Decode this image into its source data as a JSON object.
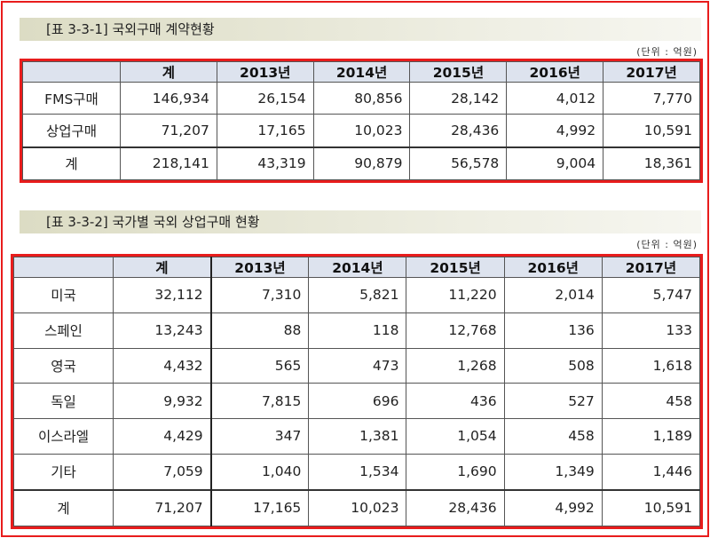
{
  "table1": {
    "title": "[표 3-3-1] 국외구매 계약현황",
    "unit": "(단위 : 억원)",
    "headers": [
      "",
      "계",
      "2013년",
      "2014년",
      "2015년",
      "2016년",
      "2017년"
    ],
    "rows": [
      {
        "label": "FMS구매",
        "values": [
          "146,934",
          "26,154",
          "80,856",
          "28,142",
          "4,012",
          "7,770"
        ]
      },
      {
        "label": "상업구매",
        "values": [
          "71,207",
          "17,165",
          "10,023",
          "28,436",
          "4,992",
          "10,591"
        ]
      },
      {
        "label": "계",
        "values": [
          "218,141",
          "43,319",
          "90,879",
          "56,578",
          "9,004",
          "18,361"
        ]
      }
    ]
  },
  "table2": {
    "title": "[표 3-3-2] 국가별 국외 상업구매 현황",
    "unit": "(단위 : 억원)",
    "headers": [
      "",
      "계",
      "2013년",
      "2014년",
      "2015년",
      "2016년",
      "2017년"
    ],
    "rows": [
      {
        "label": "미국",
        "values": [
          "32,112",
          "7,310",
          "5,821",
          "11,220",
          "2,014",
          "5,747"
        ]
      },
      {
        "label": "스페인",
        "values": [
          "13,243",
          "88",
          "118",
          "12,768",
          "136",
          "133"
        ]
      },
      {
        "label": "영국",
        "values": [
          "4,432",
          "565",
          "473",
          "1,268",
          "508",
          "1,618"
        ]
      },
      {
        "label": "독일",
        "values": [
          "9,932",
          "7,815",
          "696",
          "436",
          "527",
          "458"
        ]
      },
      {
        "label": "이스라엘",
        "values": [
          "4,429",
          "347",
          "1,381",
          "1,054",
          "458",
          "1,189"
        ]
      },
      {
        "label": "기타",
        "values": [
          "7,059",
          "1,040",
          "1,534",
          "1,690",
          "1,349",
          "1,446"
        ]
      },
      {
        "label": "계",
        "values": [
          "71,207",
          "17,165",
          "10,023",
          "28,436",
          "4,992",
          "10,591"
        ]
      }
    ]
  }
}
